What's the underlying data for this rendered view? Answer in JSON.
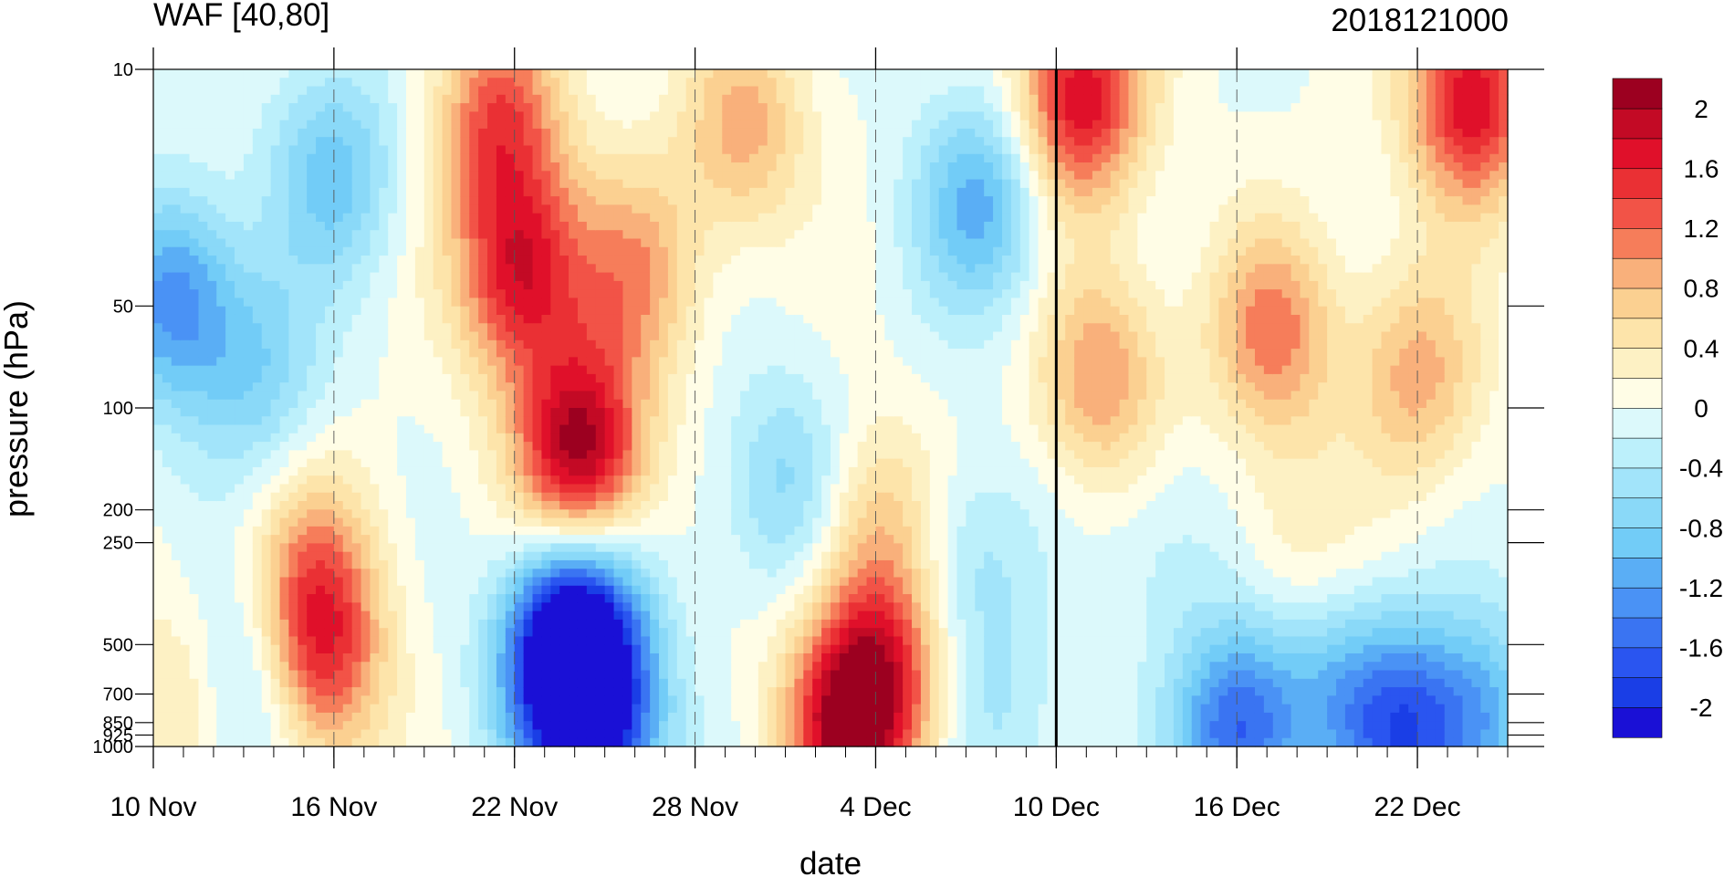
{
  "chart_data": {
    "type": "heatmap",
    "subtype": "filled-contour time-pressure cross-section",
    "title_left": "WAF [40,80]",
    "title_right": "2018121000",
    "xlabel": "date",
    "ylabel": "pressure (hPa)",
    "x_start_date": "2018-11-10",
    "x_end_date": "2018-12-25",
    "x_ticks": [
      {
        "date": "2018-11-10",
        "label": "10 Nov"
      },
      {
        "date": "2018-11-16",
        "label": "16 Nov"
      },
      {
        "date": "2018-11-22",
        "label": "22 Nov"
      },
      {
        "date": "2018-11-28",
        "label": "28 Nov"
      },
      {
        "date": "2018-12-04",
        "label": "4 Dec"
      },
      {
        "date": "2018-12-10",
        "label": "10 Dec"
      },
      {
        "date": "2018-12-16",
        "label": "16 Dec"
      },
      {
        "date": "2018-12-22",
        "label": "22 Dec"
      }
    ],
    "y_scale": "log",
    "y_reversed": true,
    "ylim": [
      1000,
      10
    ],
    "y_ticks": [
      {
        "value": 10,
        "label": "10"
      },
      {
        "value": 50,
        "label": "50"
      },
      {
        "value": 100,
        "label": "100"
      },
      {
        "value": 200,
        "label": "200"
      },
      {
        "value": 250,
        "label": "250"
      },
      {
        "value": 500,
        "label": "500"
      },
      {
        "value": 700,
        "label": "700"
      },
      {
        "value": 850,
        "label": "850"
      },
      {
        "value": 925,
        "label": "925"
      },
      {
        "value": 1000,
        "label": "1000"
      }
    ],
    "vline_date": "2018-12-10",
    "colorbar": {
      "levels": [
        -2.2,
        -2.0,
        -1.8,
        -1.6,
        -1.4,
        -1.2,
        -1.0,
        -0.8,
        -0.6,
        -0.4,
        -0.2,
        0,
        0.2,
        0.4,
        0.6,
        0.8,
        1.0,
        1.2,
        1.4,
        1.6,
        1.8,
        2.0,
        2.2
      ],
      "colors": [
        "#1a10d6",
        "#1a3ee6",
        "#2a55f0",
        "#3a74f2",
        "#4a92f5",
        "#5aaef5",
        "#72ccf7",
        "#8ad9f8",
        "#a2e4fa",
        "#bcf0fb",
        "#dcf9fb",
        "#fffde6",
        "#fdf1c4",
        "#fde4aa",
        "#fbd091",
        "#f9b07b",
        "#f67d5a",
        "#f25347",
        "#ea3034",
        "#e0102a",
        "#c30a25",
        "#9c0020"
      ],
      "labels": [
        {
          "value": -2.0,
          "label": "-2"
        },
        {
          "value": -1.6,
          "label": "-1.6"
        },
        {
          "value": -1.2,
          "label": "-1.2"
        },
        {
          "value": -0.8,
          "label": "-0.8"
        },
        {
          "value": -0.4,
          "label": "-0.4"
        },
        {
          "value": 0.0,
          "label": "0"
        },
        {
          "value": 0.4,
          "label": "0.4"
        },
        {
          "value": 0.8,
          "label": "0.8"
        },
        {
          "value": 1.2,
          "label": "1.2"
        },
        {
          "value": 1.6,
          "label": "1.6"
        },
        {
          "value": 2.0,
          "label": "2"
        }
      ]
    },
    "field_features": [
      {
        "day": 14.2,
        "p": 140,
        "amp": 2.2
      },
      {
        "day": 12.2,
        "p": 40,
        "amp": 1.7
      },
      {
        "day": 11.5,
        "p": 14,
        "amp": 1.3
      },
      {
        "day": 5.5,
        "p": 560,
        "amp": 1.4
      },
      {
        "day": 5.4,
        "p": 300,
        "amp": 0.8
      },
      {
        "day": 16.0,
        "p": 40,
        "amp": 0.9
      },
      {
        "day": 19.6,
        "p": 15,
        "amp": 0.9
      },
      {
        "day": 23.0,
        "p": 900,
        "amp": 1.7
      },
      {
        "day": 24.2,
        "p": 600,
        "amp": 1.3
      },
      {
        "day": 24.0,
        "p": 220,
        "amp": 0.7
      },
      {
        "day": 30.8,
        "p": 12,
        "amp": 1.8
      },
      {
        "day": 31.5,
        "p": 80,
        "amp": 1.0
      },
      {
        "day": 37.2,
        "p": 60,
        "amp": 1.1
      },
      {
        "day": 43.8,
        "p": 12,
        "amp": 1.8
      },
      {
        "day": 42.0,
        "p": 80,
        "amp": 0.9
      },
      {
        "day": 38.0,
        "p": 270,
        "amp": 0.4
      },
      {
        "day": 1.0,
        "p": 700,
        "amp": 0.5
      },
      {
        "day": 0.7,
        "p": 48,
        "amp": -1.3
      },
      {
        "day": 6.0,
        "p": 20,
        "amp": -0.9
      },
      {
        "day": 3.5,
        "p": 80,
        "amp": -0.7
      },
      {
        "day": 3.3,
        "p": 650,
        "amp": -0.8
      },
      {
        "day": 13.5,
        "p": 700,
        "amp": -1.1
      },
      {
        "day": 15.0,
        "p": 880,
        "amp": -1.5
      },
      {
        "day": 14.2,
        "p": 400,
        "amp": -1.0
      },
      {
        "day": 13.8,
        "p": 480,
        "amp": -1.2
      },
      {
        "day": 21.0,
        "p": 170,
        "amp": -0.7
      },
      {
        "day": 27.5,
        "p": 25,
        "amp": -1.1
      },
      {
        "day": 27.0,
        "p": 300,
        "amp": -0.5
      },
      {
        "day": 28.0,
        "p": 850,
        "amp": -0.4
      },
      {
        "day": 36.0,
        "p": 910,
        "amp": -1.6
      },
      {
        "day": 41.5,
        "p": 890,
        "amp": -1.5
      },
      {
        "day": 44.2,
        "p": 850,
        "amp": -1.0
      },
      {
        "day": 39.0,
        "p": 650,
        "amp": -0.7
      },
      {
        "day": 33.5,
        "p": 260,
        "amp": -0.3
      }
    ]
  }
}
